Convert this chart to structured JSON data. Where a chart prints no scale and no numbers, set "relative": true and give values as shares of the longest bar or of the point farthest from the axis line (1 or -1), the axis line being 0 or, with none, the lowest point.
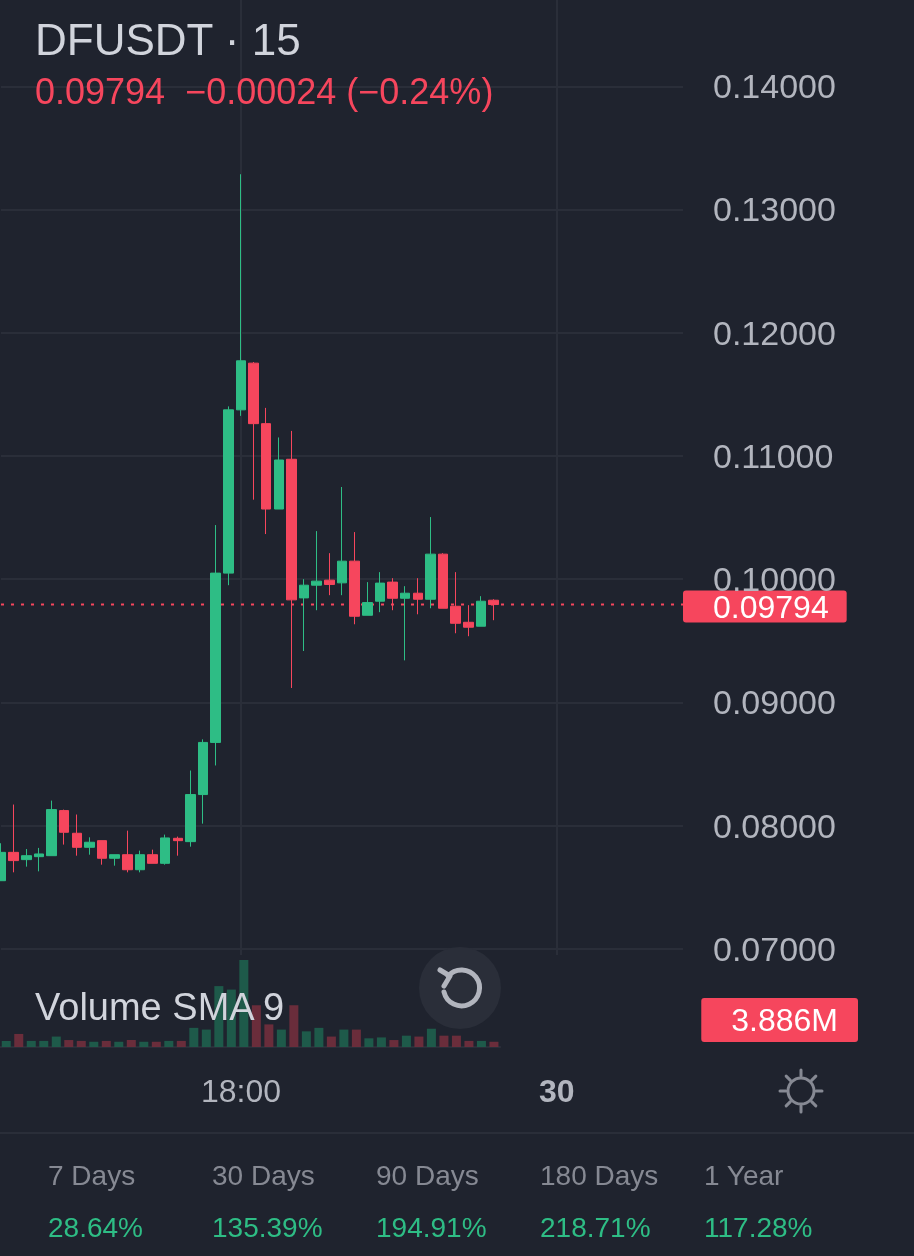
{
  "chart_data": [
    {
      "type": "candlestick",
      "title": "DFUSDT · 15",
      "subtitle": "0.09794  −0.00024 (−0.24%)",
      "categories": [
        null,
        null,
        null,
        null,
        null,
        null,
        null,
        null,
        null,
        null,
        null,
        null,
        null,
        null,
        null,
        null,
        null,
        null,
        null,
        "18:00",
        null,
        null,
        null,
        null,
        null,
        null,
        null,
        null,
        null,
        null,
        null,
        null,
        null,
        null,
        null,
        null,
        null,
        null,
        null,
        null,
        null,
        null,
        null,
        null,
        "30",
        null,
        null,
        null,
        null,
        null,
        null,
        null,
        null,
        null,
        null
      ],
      "ohlc": [
        [
          0.07553,
          0.07857,
          0.07553,
          0.07783
        ],
        [
          0.07783,
          0.08171,
          0.07621,
          0.07716
        ],
        [
          0.07724,
          0.0781,
          0.07667,
          0.07756
        ],
        [
          0.07748,
          0.07819,
          0.07629,
          0.0777
        ],
        [
          0.07756,
          0.08203,
          0.07756,
          0.0813
        ],
        [
          0.08122,
          0.0813,
          0.07846,
          0.07946
        ],
        [
          0.07938,
          0.0809,
          0.07756,
          0.07824
        ],
        [
          0.07824,
          0.07905,
          0.07764,
          0.07865
        ],
        [
          0.07878,
          0.07878,
          0.07683,
          0.07735
        ],
        [
          0.07735,
          0.07764,
          0.07675,
          0.07764
        ],
        [
          0.07764,
          0.07959,
          0.07621,
          0.07642
        ],
        [
          0.07642,
          0.07797,
          0.07621,
          0.07764
        ],
        [
          0.07764,
          0.07805,
          0.07694,
          0.07694
        ],
        [
          0.07694,
          0.07927,
          0.07683,
          0.079
        ],
        [
          0.07897,
          0.07911,
          0.07756,
          0.07878
        ],
        [
          0.0787,
          0.08447,
          0.07829,
          0.08252
        ],
        [
          0.08252,
          0.087,
          0.08016,
          0.08675
        ],
        [
          0.08675,
          0.10439,
          0.08488,
          0.10049
        ],
        [
          0.10049,
          0.11402,
          0.09951,
          0.11374
        ],
        [
          0.11374,
          0.13286,
          0.11325,
          0.11772
        ],
        [
          0.11753,
          0.11762,
          0.10645,
          0.11262
        ],
        [
          0.11262,
          0.1139,
          0.10366,
          0.10569
        ],
        [
          0.10569,
          0.1115,
          0.10569,
          0.10967
        ],
        [
          0.10973,
          0.11203,
          0.09117,
          0.09832
        ],
        [
          0.09848,
          0.1,
          0.09417,
          0.09951
        ],
        [
          0.09951,
          0.1039,
          0.09748,
          0.09984
        ],
        [
          0.09992,
          0.10211,
          0.0987,
          0.09957
        ],
        [
          0.0997,
          0.10748,
          0.0987,
          0.10146
        ],
        [
          0.10146,
          0.10382,
          0.09634,
          0.09699
        ],
        [
          0.09707,
          0.09976,
          0.09707,
          0.0981
        ],
        [
          0.09821,
          0.10057,
          0.09732,
          0.09968
        ],
        [
          0.09976,
          0.10008,
          0.09748,
          0.09845
        ],
        [
          0.09845,
          0.09943,
          0.09341,
          0.09886
        ],
        [
          0.09886,
          0.10008,
          0.09715,
          0.09837
        ],
        [
          0.09837,
          0.10504,
          0.09764,
          0.10203
        ],
        [
          0.10203,
          0.10211,
          0.09764,
          0.09764
        ],
        [
          0.0978,
          0.10057,
          0.09561,
          0.09642
        ],
        [
          0.0965,
          0.09789,
          0.09537,
          0.0961
        ],
        [
          0.09618,
          0.09862,
          0.09618,
          0.09821
        ],
        [
          0.09829,
          0.09837,
          0.09667,
          0.09794
        ],
        null,
        null,
        null,
        null,
        null,
        null,
        null,
        null,
        null,
        null,
        null,
        null,
        null,
        null,
        null
      ],
      "colors": [
        "#2ebd85",
        "#f6465d",
        "#2ebd85",
        "#2ebd85",
        "#2ebd85",
        "#f6465d",
        "#f6465d",
        "#2ebd85",
        "#f6465d",
        "#2ebd85",
        "#f6465d",
        "#2ebd85",
        "#f6465d",
        "#2ebd85",
        "#f6465d",
        "#2ebd85",
        "#2ebd85",
        "#2ebd85",
        "#2ebd85",
        "#2ebd85",
        "#f6465d",
        "#f6465d",
        "#2ebd85",
        "#f6465d",
        "#2ebd85",
        "#2ebd85",
        "#f6465d",
        "#2ebd85",
        "#f6465d",
        "#2ebd85",
        "#2ebd85",
        "#f6465d",
        "#2ebd85",
        "#f6465d",
        "#2ebd85",
        "#f6465d",
        "#f6465d",
        "#f6465d",
        "#2ebd85",
        "#f6465d",
        null,
        null,
        null,
        null,
        null,
        null,
        null,
        null,
        null,
        null,
        null,
        null,
        null,
        null,
        null
      ],
      "ylim": [
        0.0695,
        0.147
      ],
      "yticks": [
        {
          "value": 0.07,
          "label": "0.07000"
        },
        {
          "value": 0.08,
          "label": "0.08000"
        },
        {
          "value": 0.09,
          "label": "0.09000"
        },
        {
          "value": 0.1,
          "label": "0.10000"
        },
        {
          "value": 0.11,
          "label": "0.11000"
        },
        {
          "value": 0.12,
          "label": "0.12000"
        },
        {
          "value": 0.13,
          "label": "0.13000"
        },
        {
          "value": 0.14,
          "label": "0.14000"
        }
      ],
      "ref_lines": [
        {
          "axis": "y",
          "value": 0.09794,
          "label": "0.09794",
          "color": "#f6465d",
          "line_style": "dotted"
        }
      ],
      "grid": true
    },
    {
      "type": "bar",
      "title": "Volume SMA 9",
      "relative": true,
      "categories": [
        null,
        null,
        null,
        null,
        null,
        null,
        null,
        null,
        null,
        null,
        null,
        null,
        null,
        null,
        null,
        null,
        null,
        null,
        null,
        null,
        null,
        null,
        null,
        null,
        null,
        null,
        null,
        null,
        null,
        null,
        null,
        null,
        null,
        null,
        null,
        null,
        null,
        null,
        null,
        null
      ],
      "values": [
        0.07,
        0.15,
        0.07,
        0.07,
        0.12,
        0.08,
        0.07,
        0.06,
        0.07,
        0.06,
        0.08,
        0.06,
        0.06,
        0.07,
        0.07,
        0.22,
        0.2,
        0.7,
        0.66,
        1,
        0.48,
        0.26,
        0.2,
        0.48,
        0.18,
        0.22,
        0.12,
        0.2,
        0.2,
        0.1,
        0.11,
        0.08,
        0.13,
        0.12,
        0.21,
        0.13,
        0.13,
        0.07,
        0.07,
        0.06
      ],
      "colors": [
        "#1e5a4a",
        "#6a2d3b",
        "#1e5a4a",
        "#1e5a4a",
        "#1e5a4a",
        "#6a2d3b",
        "#6a2d3b",
        "#1e5a4a",
        "#6a2d3b",
        "#1e5a4a",
        "#6a2d3b",
        "#1e5a4a",
        "#6a2d3b",
        "#1e5a4a",
        "#6a2d3b",
        "#1e5a4a",
        "#1e5a4a",
        "#1e5a4a",
        "#1e5a4a",
        "#1e5a4a",
        "#6a2d3b",
        "#6a2d3b",
        "#1e5a4a",
        "#6a2d3b",
        "#1e5a4a",
        "#1e5a4a",
        "#6a2d3b",
        "#1e5a4a",
        "#6a2d3b",
        "#1e5a4a",
        "#1e5a4a",
        "#6a2d3b",
        "#1e5a4a",
        "#6a2d3b",
        "#1e5a4a",
        "#6a2d3b",
        "#6a2d3b",
        "#6a2d3b",
        "#1e5a4a",
        "#6a2d3b"
      ],
      "annotations": [
        "3.886M"
      ]
    },
    {
      "type": "other",
      "categories": [
        "7 Days",
        "30 Days",
        "90 Days",
        "180 Days",
        "1 Year"
      ],
      "value_labels": [
        "28.64%",
        "135.39%",
        "194.91%",
        "218.71%",
        "117.28%"
      ]
    }
  ]
}
